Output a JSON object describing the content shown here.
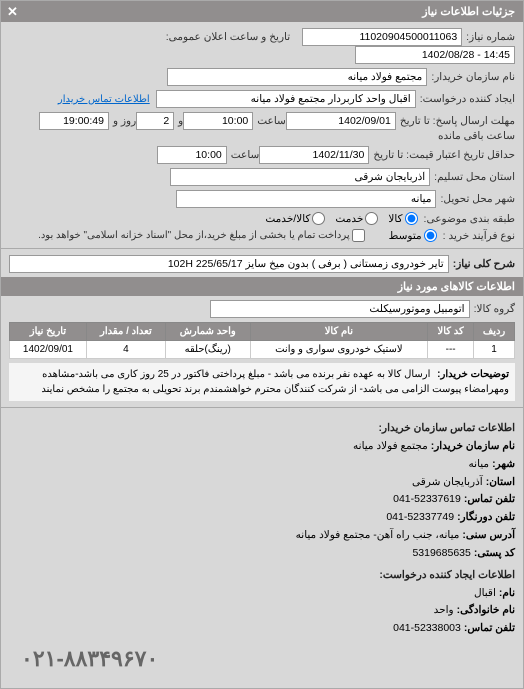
{
  "header": {
    "title": "جزئیات اطلاعات نیاز"
  },
  "fields": {
    "req_no_lbl": "شماره نیاز:",
    "req_no": "11020904500011063",
    "announce_lbl": "تاریخ و ساعت اعلان عمومی:",
    "announce": "14:45 - 1402/08/28",
    "buyer_lbl": "نام سازمان خریدار:",
    "buyer": "مجتمع فولاد میانه",
    "creator_lbl": "ایجاد کننده درخواست:",
    "creator": "اقبال واحد کاربردار مجتمع فولاد میانه",
    "contact_link": "اطلاعات تماس خریدار",
    "deadline_lbl": "مهلت ارسال پاسخ: تا تاریخ",
    "deadline_date": "1402/09/01",
    "time_lbl": "ساعت",
    "deadline_time": "10:00",
    "and_lbl": "و",
    "days": "2",
    "day_word": "روز و",
    "remain_time": "19:00:49",
    "remain_lbl": "ساعت باقی مانده",
    "valid_lbl": "حداقل تاریخ اعتبار قیمت: تا تاریخ",
    "valid_date": "1402/11/30",
    "valid_time": "10:00",
    "state_lbl": "استان محل تسلیم:",
    "state": "آذربایجان شرقی",
    "city_lbl": "شهر محل تحویل:",
    "city": "میانه",
    "cat_lbl": "طبقه بندی موضوعی:",
    "cat_goods": "کالا",
    "cat_service": "خدمت",
    "cat_goods_service": "کالا/خدمت",
    "buy_proc_lbl": "نوع فرآیند خرید :",
    "buy_proc_med": "متوسط",
    "buy_proc_note": "پرداخت تمام یا بخشی از مبلغ خرید،از محل \"اسناد خزانه اسلامی\" خواهد بود.",
    "desc_lbl": "شرح کلی نیاز:",
    "desc": "تایر خودروی زمستانی ( برفی ) بدون میخ سایز 225/65/17 102H",
    "goods_info_title": "اطلاعات کالاهای مورد نیاز",
    "group_lbl": "گروه کالا:",
    "group": "اتومبیل وموتورسیکلت",
    "explain_lbl": "توضیحات خریدار:",
    "explain": "ارسال کالا به عهده نفر برنده می باشد - مبلغ پرداختی فاکتور در 25 روز کاری می باشد-مشاهده ومهرامضاء پیوست الزامی می باشد- از شرکت کنندگان محترم خواهشمندم برند تحویلی به مجتمع را مشخص نمایند"
  },
  "table": {
    "cols": [
      "ردیف",
      "کد کالا",
      "نام کالا",
      "واحد شمارش",
      "تعداد / مقدار",
      "تاریخ نیاز"
    ],
    "rows": [
      [
        "1",
        "---",
        "لاستیک خودروی سواری و وانت",
        "(رینگ)حلقه",
        "4",
        "1402/09/01"
      ]
    ]
  },
  "contact": {
    "title": "اطلاعات تماس سازمان خریدار:",
    "org_lbl": "نام سازمان خریدار:",
    "org": "مجتمع فولاد میانه",
    "city_lbl": "شهر:",
    "city": "میانه",
    "state_lbl": "استان:",
    "state": "آذربایجان شرقی",
    "tel_lbl": "تلفن تماس:",
    "tel": "52337619-041",
    "fax_lbl": "تلفن دورنگار:",
    "fax": "52337749-041",
    "addr_lbl": "آدرس سنی:",
    "addr": "میانه، جنب راه آهن- مجتمع فولاد میانه",
    "post_lbl": "کد پستی:",
    "post": "5319685635",
    "creator_title": "اطلاعات ایجاد کننده درخواست:",
    "name_lbl": "نام:",
    "name": "اقبال",
    "lname_lbl": "نام خانوادگی:",
    "lname": "واحد",
    "ctel_lbl": "تلفن تماس:",
    "ctel": "52338003-041",
    "bigphone": "۰۲۱-۸۸۳۴۹۶۷۰"
  },
  "colors": {
    "header_bg": "#918e8e",
    "panel_bg": "#d8d8d8"
  }
}
